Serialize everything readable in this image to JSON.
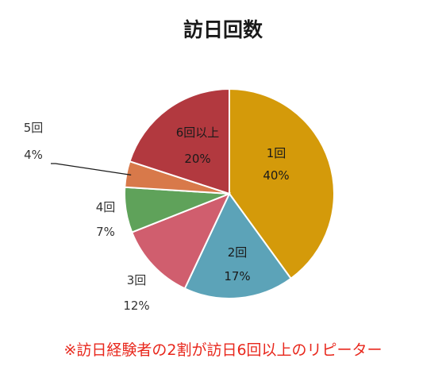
{
  "chart_data": {
    "type": "pie",
    "title": "訪日回数",
    "start_angle_deg": 0,
    "direction": "clockwise",
    "slices": [
      {
        "label": "1回",
        "value": 40,
        "value_label": "40%",
        "color": "#d49a0a"
      },
      {
        "label": "2回",
        "value": 17,
        "value_label": "17%",
        "color": "#5ca3b8"
      },
      {
        "label": "3回",
        "value": 12,
        "value_label": "12%",
        "color": "#d05e6e"
      },
      {
        "label": "4回",
        "value": 7,
        "value_label": "7%",
        "color": "#5fa25a"
      },
      {
        "label": "5回",
        "value": 4,
        "value_label": "4%",
        "color": "#d8794a"
      },
      {
        "label": "6回以上",
        "value": 20,
        "value_label": "20%",
        "color": "#b2393f"
      }
    ]
  },
  "footnote": "※訪日経験者の2割が訪日6回以上のリピーター"
}
